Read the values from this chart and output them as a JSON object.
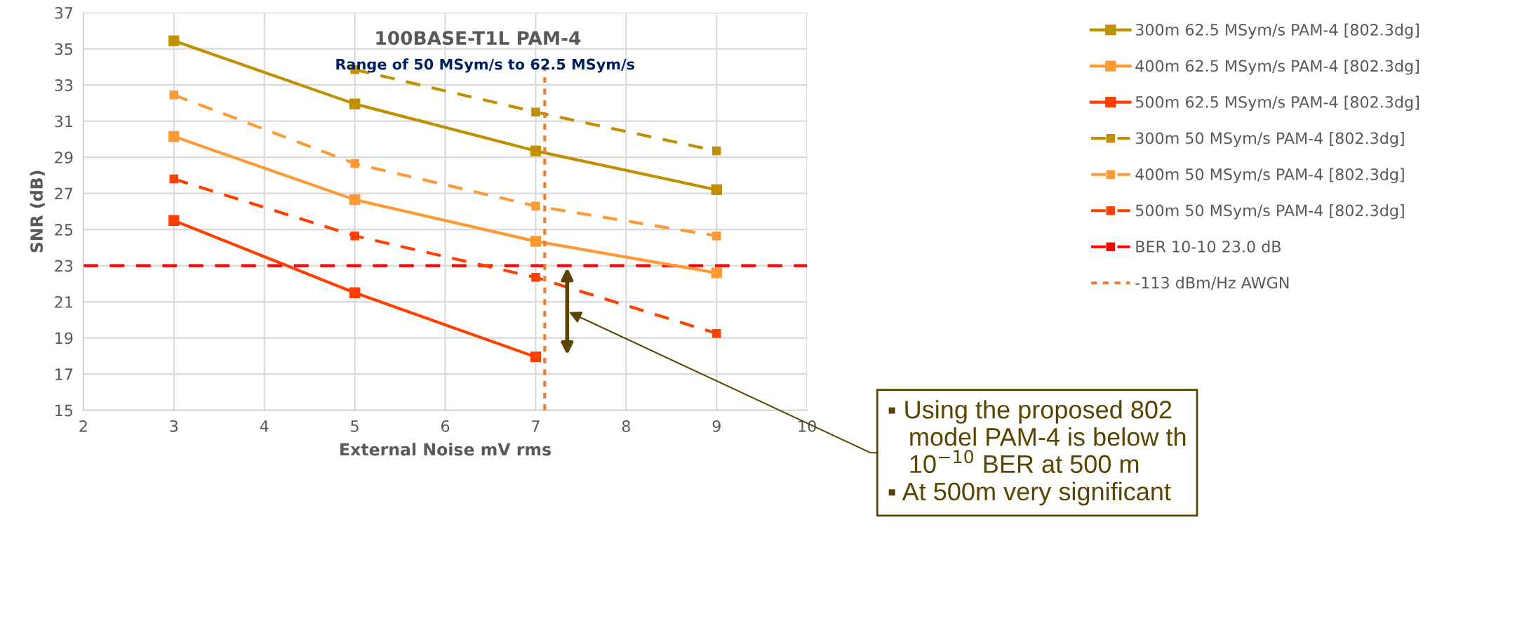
{
  "chart_data": {
    "type": "line",
    "title": "100BASE-T1L PAM-4",
    "subtitle": "Range of 50 MSym/s to 62.5 MSym/s",
    "xlabel": "External Noise mV rms",
    "ylabel": "SNR (dB)",
    "x": [
      3,
      5,
      7,
      9
    ],
    "xlim": [
      2,
      10
    ],
    "xticks": [
      2,
      3,
      4,
      5,
      6,
      7,
      8,
      9,
      10
    ],
    "ylim": [
      15,
      37
    ],
    "yticks": [
      15,
      17,
      19,
      21,
      23,
      25,
      27,
      29,
      31,
      33,
      35,
      37
    ],
    "grid": true,
    "legend": "right",
    "marker": "square",
    "series": [
      {
        "name": "300m 62.5 MSym/s PAM-4 [802.3dg]",
        "color": "#bf9000",
        "values": [
          35.45,
          31.95,
          29.35,
          27.2
        ]
      },
      {
        "name": "400m 62.5 MSym/s PAM-4 [802.3dg]",
        "color": "#ff9933",
        "values": [
          30.15,
          26.65,
          24.35,
          22.6
        ]
      },
      {
        "name": "500m 62.5 MSym/s PAM-4 [802.3dg]",
        "color": "#ff4000",
        "values": [
          25.5,
          21.5,
          17.95,
          null
        ]
      },
      {
        "name": "300m 50 MSym/s PAM-4 [802.3dg]",
        "color": "#bf9000",
        "line_style": "dashed",
        "values": [
          null,
          33.85,
          31.5,
          29.35
        ]
      },
      {
        "name": "400m 50 MSym/s PAM-4 [802.3dg]",
        "color": "#ff9933",
        "line_style": "dashed",
        "values": [
          32.45,
          28.65,
          26.3,
          24.65
        ]
      },
      {
        "name": "500m 50 MSym/s PAM-4 [802.3dg]",
        "color": "#ff4000",
        "line_style": "dashed",
        "values": [
          27.8,
          24.65,
          22.35,
          19.25
        ]
      },
      {
        "name": "-113 dBm/Hz AWGN",
        "color": "#ed7d31",
        "line_style": "dotted",
        "marker": "none",
        "x": [
          7.1,
          7.1
        ],
        "values": [
          15,
          34.1
        ]
      }
    ],
    "ref_lines": [
      {
        "axis": "y",
        "value": 23,
        "label": "BER 10-10 23.0 dB",
        "color": "#ff0000",
        "line_style": "dashed"
      }
    ],
    "annotations": [
      "▪ Using the proposed 802\n   model PAM-4 is below th\n   10$^{−10}$ BER at 500 m\n▪ At 500m very significant"
    ]
  }
}
